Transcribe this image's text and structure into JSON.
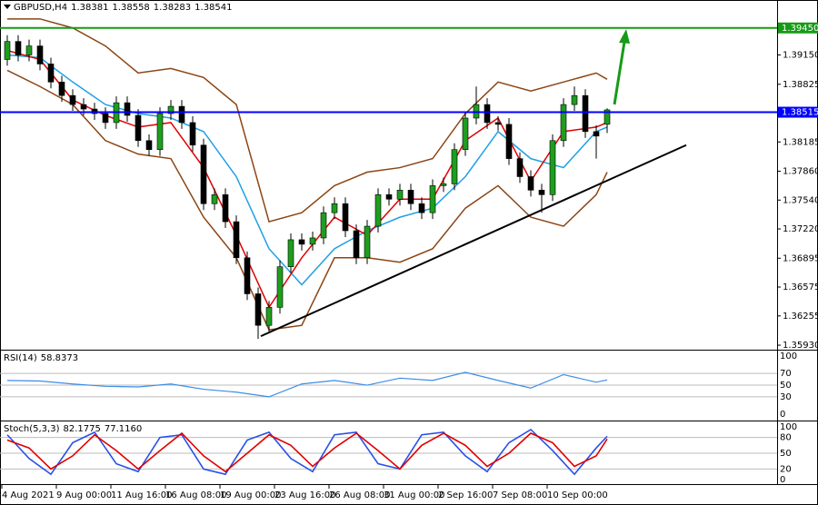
{
  "chart_data": {
    "type": "candlestick",
    "title": "GBPUSD,H4",
    "categories": [
      "4 Aug 2021",
      null,
      null,
      null,
      null,
      "9 Aug 00:00",
      null,
      null,
      null,
      null,
      "11 Aug 16:00",
      null,
      null,
      null,
      null,
      "16 Aug 08:00",
      null,
      null,
      null,
      null,
      "19 Aug 00:00",
      null,
      null,
      null,
      null,
      "23 Aug 16:00",
      null,
      null,
      null,
      null,
      "26 Aug 08:00",
      null,
      null,
      null,
      null,
      "31 Aug 00:00",
      null,
      null,
      null,
      null,
      "2 Sep 16:00",
      null,
      null,
      null,
      null,
      "7 Sep 08:00",
      null,
      null,
      null,
      null,
      "10 Sep 00:00",
      null,
      null,
      null,
      null,
      null
    ],
    "open": [
      1.391,
      1.393,
      1.3915,
      1.3925,
      1.3905,
      1.3885,
      1.387,
      1.386,
      1.3855,
      1.385,
      1.384,
      1.3862,
      1.3848,
      1.382,
      1.381,
      1.385,
      1.3858,
      1.384,
      1.3815,
      1.375,
      1.376,
      1.373,
      1.369,
      1.365,
      1.3615,
      1.3635,
      1.368,
      1.371,
      1.3705,
      1.3712,
      1.374,
      1.375,
      1.372,
      1.369,
      1.3725,
      1.376,
      1.3755,
      1.3765,
      1.375,
      1.374,
      1.377,
      1.3772,
      1.381,
      1.3845,
      1.386,
      1.384,
      1.3838,
      1.38,
      1.378,
      1.3765,
      1.376,
      1.382,
      1.386,
      1.387,
      1.383,
      1.38381
    ],
    "high": [
      1.3937,
      1.3937,
      1.3932,
      1.3932,
      1.3912,
      1.3892,
      1.3877,
      1.3867,
      1.3862,
      1.3857,
      1.3869,
      1.3869,
      1.3855,
      1.3827,
      1.3857,
      1.3865,
      1.3865,
      1.3847,
      1.3822,
      1.3767,
      1.3767,
      1.3737,
      1.3697,
      1.3657,
      1.3642,
      1.3687,
      1.3717,
      1.3717,
      1.3719,
      1.3747,
      1.3757,
      1.3757,
      1.3727,
      1.3732,
      1.3767,
      1.3767,
      1.3772,
      1.3772,
      1.3757,
      1.3777,
      1.3779,
      1.3817,
      1.3852,
      1.388,
      1.3867,
      1.3847,
      1.3845,
      1.3807,
      1.3787,
      1.3772,
      1.3827,
      1.3867,
      1.388,
      1.3877,
      1.3837,
      1.38558
    ],
    "low": [
      1.3903,
      1.3908,
      1.3908,
      1.3898,
      1.3878,
      1.3863,
      1.3853,
      1.3848,
      1.3843,
      1.3833,
      1.3833,
      1.3841,
      1.3813,
      1.3803,
      1.3803,
      1.3843,
      1.3833,
      1.3808,
      1.3743,
      1.3743,
      1.3723,
      1.3683,
      1.3643,
      1.36,
      1.3608,
      1.3628,
      1.3673,
      1.3698,
      1.3698,
      1.3705,
      1.3733,
      1.3713,
      1.3683,
      1.3683,
      1.3718,
      1.3748,
      1.3748,
      1.3743,
      1.3733,
      1.3733,
      1.3763,
      1.3765,
      1.3803,
      1.3838,
      1.3833,
      1.3831,
      1.3793,
      1.3773,
      1.3758,
      1.374,
      1.3753,
      1.3813,
      1.3853,
      1.3823,
      1.38,
      1.38283
    ],
    "close": [
      1.393,
      1.3915,
      1.3925,
      1.3905,
      1.3885,
      1.387,
      1.386,
      1.3855,
      1.385,
      1.384,
      1.3862,
      1.3848,
      1.382,
      1.381,
      1.385,
      1.3858,
      1.384,
      1.3815,
      1.375,
      1.376,
      1.373,
      1.369,
      1.365,
      1.3615,
      1.3635,
      1.368,
      1.371,
      1.3705,
      1.3712,
      1.374,
      1.375,
      1.372,
      1.369,
      1.3725,
      1.376,
      1.3755,
      1.3765,
      1.375,
      1.374,
      1.377,
      1.3772,
      1.381,
      1.3845,
      1.386,
      1.384,
      1.3838,
      1.38,
      1.378,
      1.3765,
      1.376,
      1.382,
      1.386,
      1.387,
      1.383,
      1.3825,
      1.38541
    ],
    "up_color": "#1e9e1e",
    "down_color": "#000000",
    "ylim": [
      1.3588,
      1.3976
    ],
    "yticks": [
      {
        "value": 1.3915,
        "label": "1.39150"
      },
      1.38825,
      1.38185,
      {
        "value": 1.3786,
        "label": "1.37860"
      },
      {
        "value": 1.3754,
        "label": "1.37540"
      },
      {
        "value": 1.3722,
        "label": "1.37220"
      },
      1.36895,
      1.36575,
      1.36255,
      {
        "value": 1.3593,
        "label": "1.35930"
      }
    ],
    "levels": [
      {
        "value": 1.3945,
        "label": "1.39450",
        "color": "#169b16"
      },
      {
        "value": 1.38515,
        "label": "1.38515",
        "color": "#0000ff"
      }
    ],
    "trendline": {
      "x": [
        23.25,
        62.25
      ],
      "values": [
        1.3603,
        1.3815
      ],
      "color": "#000000"
    },
    "overlays": [
      {
        "color": "#8b4513",
        "x": [
          0,
          3,
          6,
          9,
          12,
          15,
          18,
          21,
          24,
          27,
          30,
          33,
          36,
          39,
          42,
          45,
          48,
          51,
          54,
          55
        ],
        "values": [
          1.3955,
          1.3955,
          1.3945,
          1.3925,
          1.3895,
          1.39,
          1.389,
          1.386,
          1.373,
          1.374,
          1.377,
          1.3785,
          1.379,
          1.38,
          1.385,
          1.3885,
          1.3875,
          1.3885,
          1.3895,
          1.3888
        ]
      },
      {
        "color": "#8b4513",
        "x": [
          0,
          3,
          6,
          9,
          12,
          15,
          18,
          21,
          24,
          27,
          30,
          33,
          36,
          39,
          42,
          45,
          48,
          51,
          54,
          55
        ],
        "values": [
          1.3898,
          1.388,
          1.386,
          1.382,
          1.3805,
          1.38,
          1.3735,
          1.369,
          1.361,
          1.3615,
          1.369,
          1.369,
          1.3685,
          1.37,
          1.3745,
          1.377,
          1.3735,
          1.3725,
          1.376,
          1.3785
        ]
      },
      {
        "color": "#1ea0e6",
        "x": [
          0,
          3,
          6,
          9,
          12,
          15,
          18,
          21,
          24,
          27,
          30,
          33,
          36,
          39,
          42,
          45,
          48,
          51,
          54,
          55
        ],
        "values": [
          1.3915,
          1.3912,
          1.3885,
          1.386,
          1.385,
          1.3845,
          1.383,
          1.378,
          1.37,
          1.366,
          1.37,
          1.372,
          1.3735,
          1.3745,
          1.378,
          1.383,
          1.38,
          1.379,
          1.383,
          1.3835
        ]
      },
      {
        "color": "#e00000",
        "x": [
          0,
          3,
          6,
          9,
          12,
          15,
          18,
          21,
          24,
          27,
          30,
          33,
          36,
          39,
          42,
          45,
          48,
          51,
          54,
          55
        ],
        "values": [
          1.392,
          1.391,
          1.3865,
          1.3848,
          1.3835,
          1.384,
          1.379,
          1.3715,
          1.3635,
          1.369,
          1.3735,
          1.3715,
          1.3755,
          1.3755,
          1.382,
          1.3845,
          1.3775,
          1.383,
          1.3835,
          1.384
        ]
      }
    ],
    "rsi": {
      "title": "RSI(14)",
      "color": "#3c8ce6",
      "ylim": [
        -9,
        106
      ],
      "yticks": [
        100,
        70,
        50,
        30,
        0
      ],
      "x": [
        0,
        3,
        6,
        9,
        12,
        15,
        18,
        21,
        24,
        27,
        30,
        33,
        36,
        39,
        42,
        45,
        48,
        51,
        54,
        55
      ],
      "values": [
        58,
        57,
        52,
        48,
        47,
        52,
        43,
        38,
        30,
        52,
        58,
        50,
        62,
        58,
        72,
        58,
        45,
        68,
        55,
        58.8373
      ]
    },
    "stoch": {
      "title": "Stoch(5,3,3)",
      "readout": [
        82.1775,
        {
          "value": 77.116,
          "label": "77.1160"
        }
      ],
      "ylim": [
        -7,
        107
      ],
      "yticks": [
        100,
        80,
        50,
        20,
        0
      ],
      "x": [
        0,
        2,
        4,
        6,
        8,
        10,
        12,
        14,
        16,
        18,
        20,
        22,
        24,
        26,
        28,
        30,
        32,
        34,
        36,
        38,
        40,
        42,
        44,
        46,
        48,
        50,
        52,
        54,
        55
      ],
      "series": [
        {
          "color": "#2850e6",
          "values": [
            85,
            40,
            10,
            70,
            90,
            30,
            15,
            80,
            85,
            20,
            10,
            75,
            90,
            40,
            15,
            85,
            90,
            30,
            20,
            85,
            90,
            45,
            15,
            70,
            95,
            55,
            10,
            60,
            82.1775
          ]
        },
        {
          "color": "#e00000",
          "values": [
            75,
            60,
            20,
            45,
            85,
            55,
            20,
            55,
            88,
            45,
            15,
            50,
            85,
            65,
            25,
            60,
            88,
            55,
            20,
            65,
            88,
            65,
            25,
            50,
            88,
            70,
            25,
            45,
            77.116
          ]
        }
      ]
    }
  }
}
